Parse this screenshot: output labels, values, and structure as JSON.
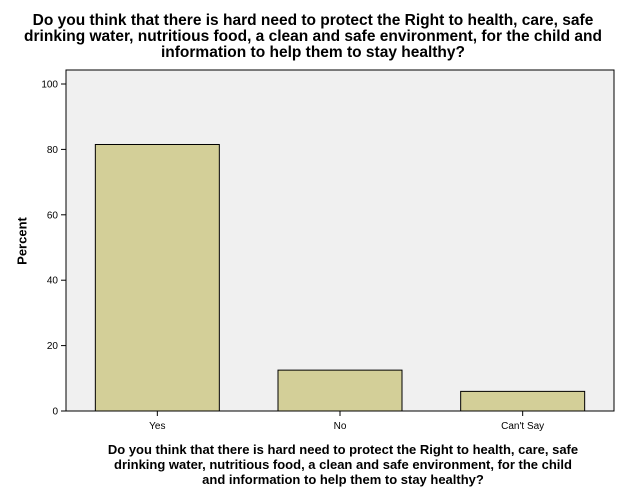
{
  "chart_data": {
    "type": "bar",
    "title": "Do you think that there is hard need to protect the Right to health, care, safe\ndrinking water, nutritious food, a clean and safe environment, for the child and\ninformation to help them to stay healthy?",
    "xlabel": "Do you think that there is hard need to protect the Right to health, care, safe\ndrinking water, nutritious food, a clean and safe environment, for the child\nand information to help them to stay healthy?",
    "ylabel": "Percent",
    "categories": [
      "Yes",
      "No",
      "Can't Say"
    ],
    "values": [
      81.5,
      12.5,
      6.0
    ],
    "ylim": [
      0,
      100
    ],
    "yticks": [
      0,
      20,
      40,
      60,
      80,
      100
    ],
    "grid": false,
    "legend": "none",
    "colors": {
      "bar_fill": "#d3cf98",
      "bar_stroke": "#000000",
      "plot_bg": "#f0f0f0",
      "frame": "#000000"
    }
  }
}
